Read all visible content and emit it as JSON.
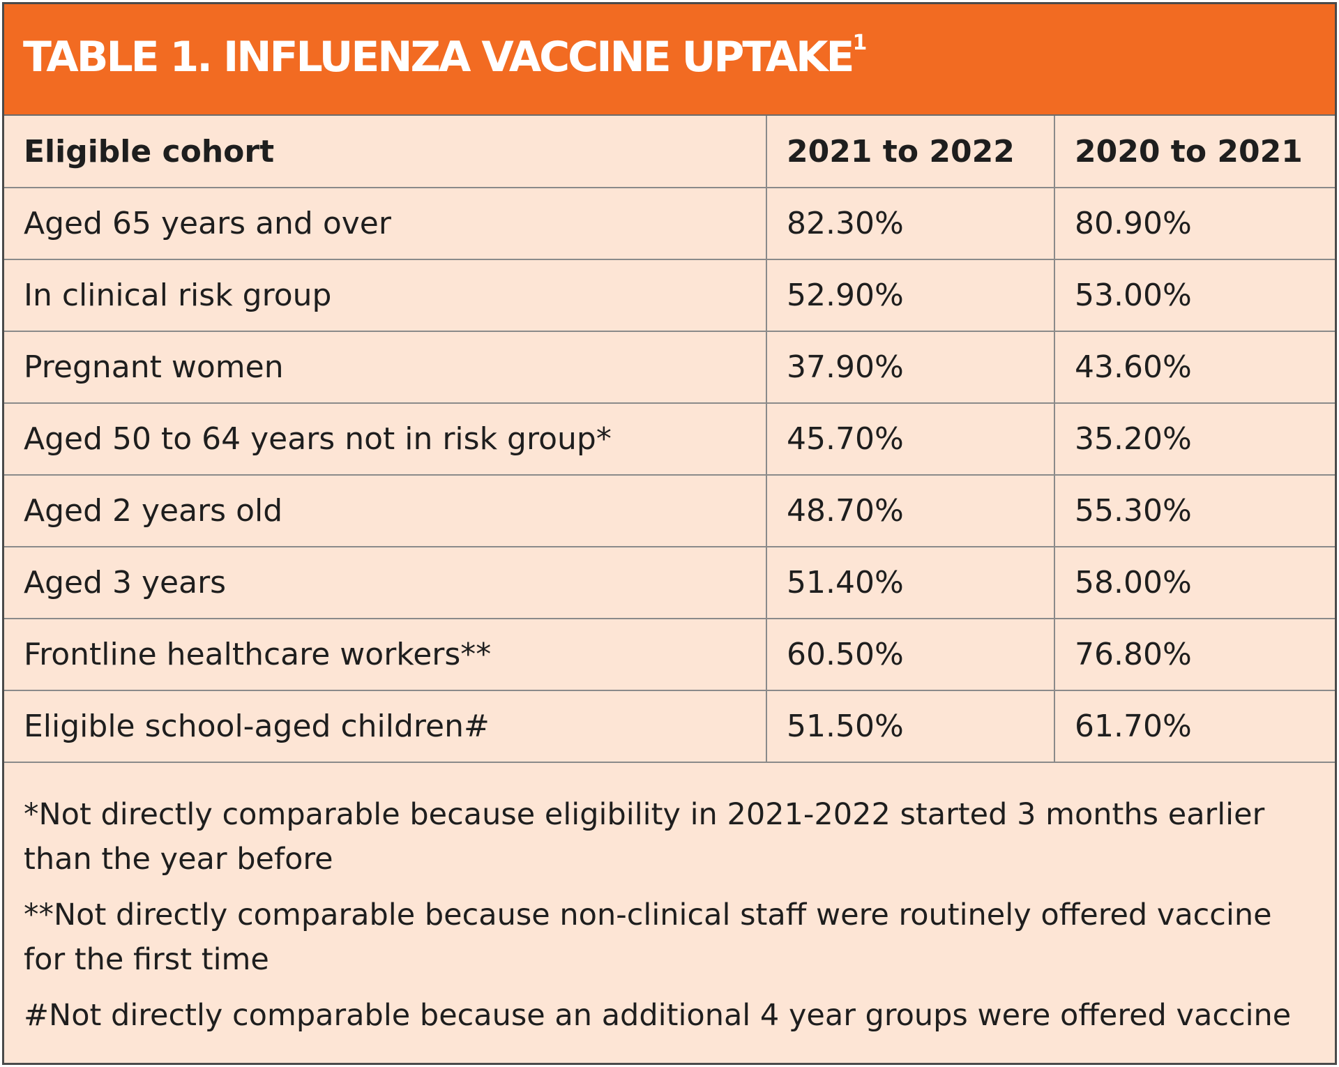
{
  "title": {
    "text": "TABLE 1. INFLUENZA VACCINE UPTAKE",
    "superscript": "1"
  },
  "table": {
    "headers": [
      "Eligible cohort",
      "2021 to 2022",
      "2020 to 2021"
    ],
    "rows": [
      {
        "cohort": "Aged 65 years and over",
        "y2021_2022": "82.30%",
        "y2020_2021": "80.90%"
      },
      {
        "cohort": "In clinical risk group",
        "y2021_2022": "52.90%",
        "y2020_2021": "53.00%"
      },
      {
        "cohort": "Pregnant women",
        "y2021_2022": "37.90%",
        "y2020_2021": "43.60%"
      },
      {
        "cohort": "Aged 50 to 64 years not in risk group*",
        "y2021_2022": "45.70%",
        "y2020_2021": "35.20%"
      },
      {
        "cohort": "Aged 2 years old",
        "y2021_2022": "48.70%",
        "y2020_2021": "55.30%"
      },
      {
        "cohort": "Aged 3 years",
        "y2021_2022": "51.40%",
        "y2020_2021": "58.00%"
      },
      {
        "cohort": "Frontline healthcare workers**",
        "y2021_2022": "60.50%",
        "y2020_2021": "76.80%"
      },
      {
        "cohort": "Eligible school-aged children#",
        "y2021_2022": "51.50%",
        "y2020_2021": "61.70%"
      }
    ]
  },
  "footnotes": [
    "*Not directly comparable because eligibility in 2021-2022 started 3 months earlier than the year before",
    "**Not directly comparable because non-clinical staff were routinely offered vaccine for the first time",
    "#Not directly comparable because an additional 4 year groups were offered vaccine"
  ],
  "colors": {
    "header_band": "#f26b22",
    "table_background": "#fde5d5",
    "grid_lines": "#8a8a8a",
    "text": "#1e1e1e"
  }
}
